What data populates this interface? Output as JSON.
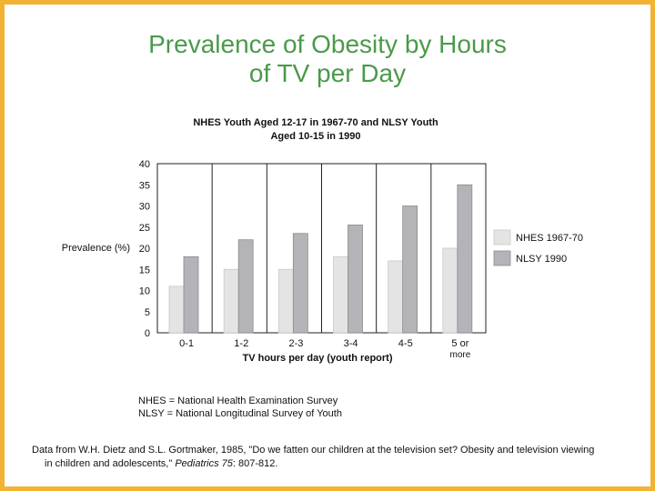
{
  "title": {
    "line1": "Prevalence of Obesity by Hours",
    "line2": "of TV per Day"
  },
  "colors": {
    "border": "#f2b233",
    "title": "#4a9a4a",
    "nhes": "#e4e4e4",
    "nlsy": "#b4b4b8"
  },
  "chart_data": {
    "type": "bar",
    "title_line1": "NHES Youth Aged 12-17 in 1967-70 and NLSY Youth",
    "title_line2": "Aged 10-15 in 1990",
    "categories": [
      [
        "0-1"
      ],
      [
        "1-2"
      ],
      [
        "2-3"
      ],
      [
        "3-4"
      ],
      [
        "4-5"
      ],
      [
        "5 or",
        "more"
      ]
    ],
    "series": [
      {
        "name": "NHES 1967-70",
        "values": [
          11,
          15,
          15,
          18,
          17,
          20
        ]
      },
      {
        "name": "NLSY 1990",
        "values": [
          18,
          22,
          23.5,
          25.5,
          30,
          35
        ]
      }
    ],
    "yticks": [
      "40",
      "35",
      "30",
      "25",
      "20",
      "15",
      "10",
      "5",
      "0"
    ],
    "ylim": [
      0,
      40
    ],
    "xlabel": "TV hours per day (youth report)",
    "ylabel": "Prevalence (%)",
    "legend_position": "right"
  },
  "footnotes": {
    "nhes": "NHES = National Health Examination Survey",
    "nlsy": "NLSY = National Longitudinal Survey of Youth"
  },
  "citation": {
    "part1": "Data from W.H. Dietz and S.L. Gortmaker, 1985, \"Do we fatten our children at the television set? Obesity and television viewing",
    "part2": "in children and adolescents,\" ",
    "journal": "Pediatrics 75",
    "part3": ": 807-812."
  }
}
